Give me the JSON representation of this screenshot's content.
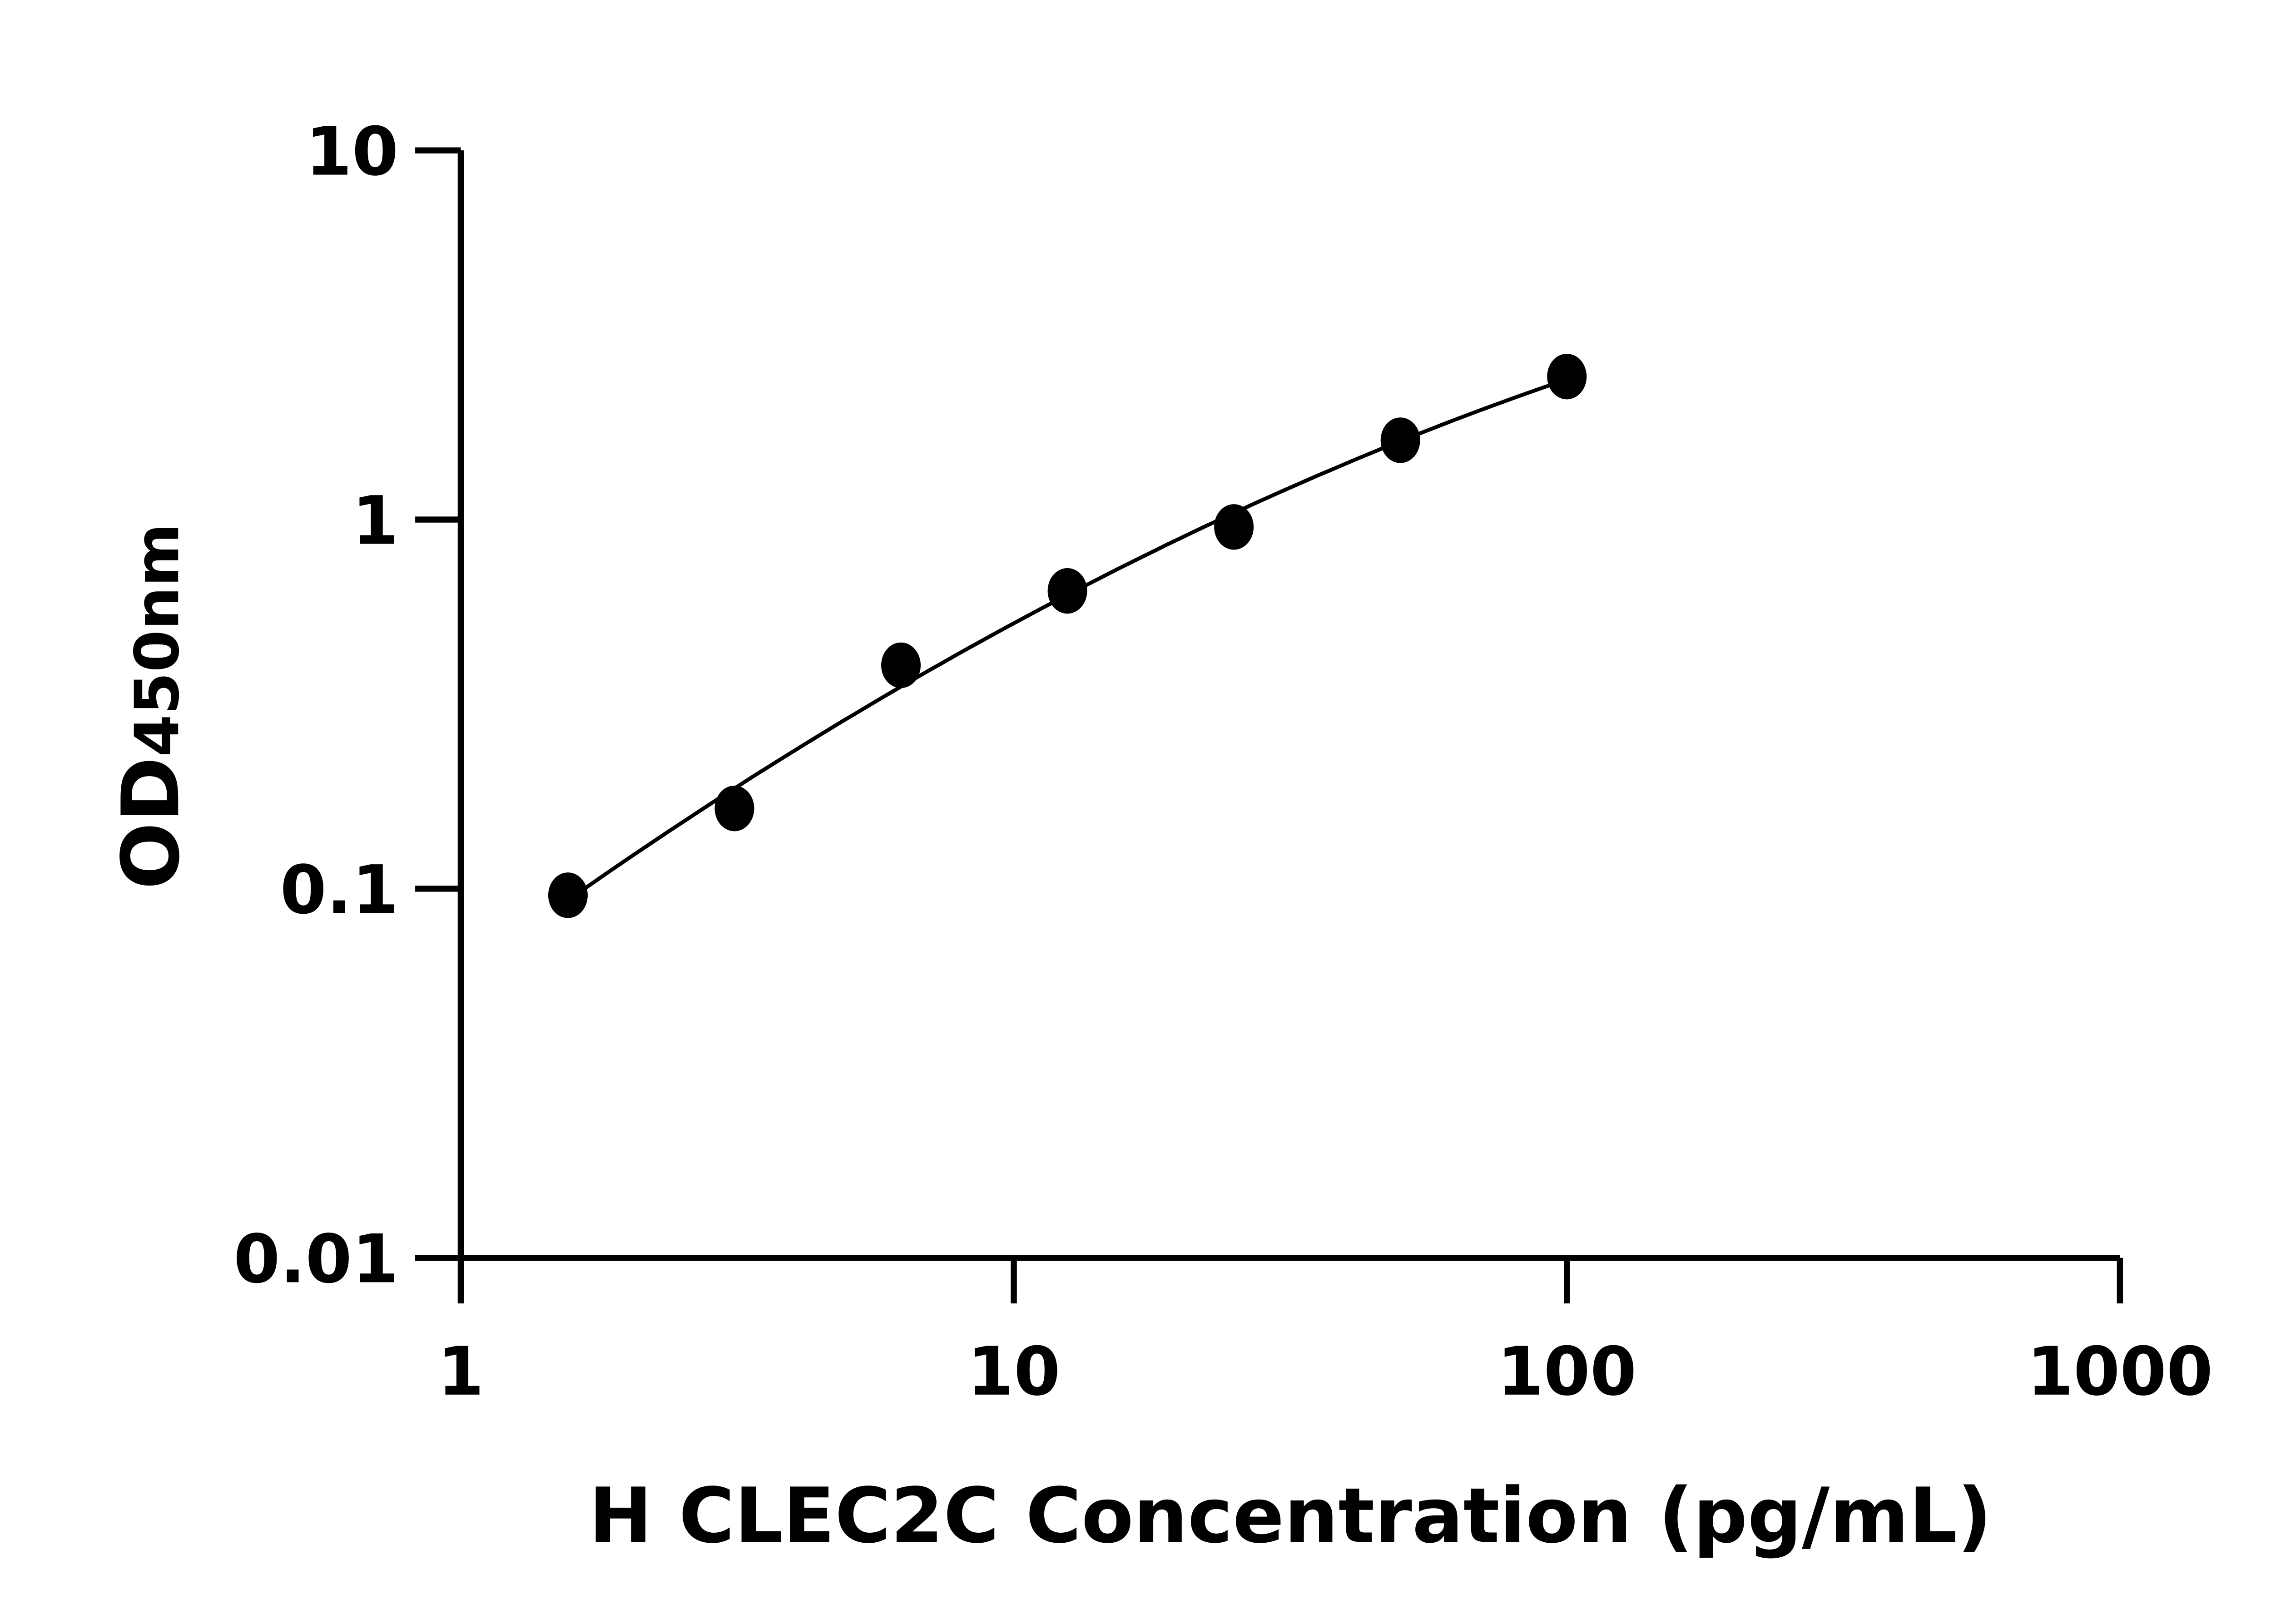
{
  "chart_data": {
    "type": "scatter",
    "title": "",
    "xlabel": "H CLEC2C Concentration (pg/mL)",
    "ylabel_main": "OD",
    "ylabel_sub": "450nm",
    "x_scale": "log",
    "y_scale": "log",
    "xlim": [
      1,
      1000
    ],
    "ylim": [
      0.01,
      10
    ],
    "x_ticks": [
      "1",
      "10",
      "100",
      "1000"
    ],
    "y_ticks": [
      "0.01",
      "0.1",
      "1",
      "10"
    ],
    "grid": false,
    "legend": "none",
    "marker_color": "#000000",
    "fit_line": true,
    "x": [
      1.5625,
      3.125,
      6.25,
      12.5,
      25,
      50,
      100
    ],
    "y": [
      0.096,
      0.165,
      0.403,
      0.641,
      0.955,
      1.64,
      2.44
    ]
  }
}
